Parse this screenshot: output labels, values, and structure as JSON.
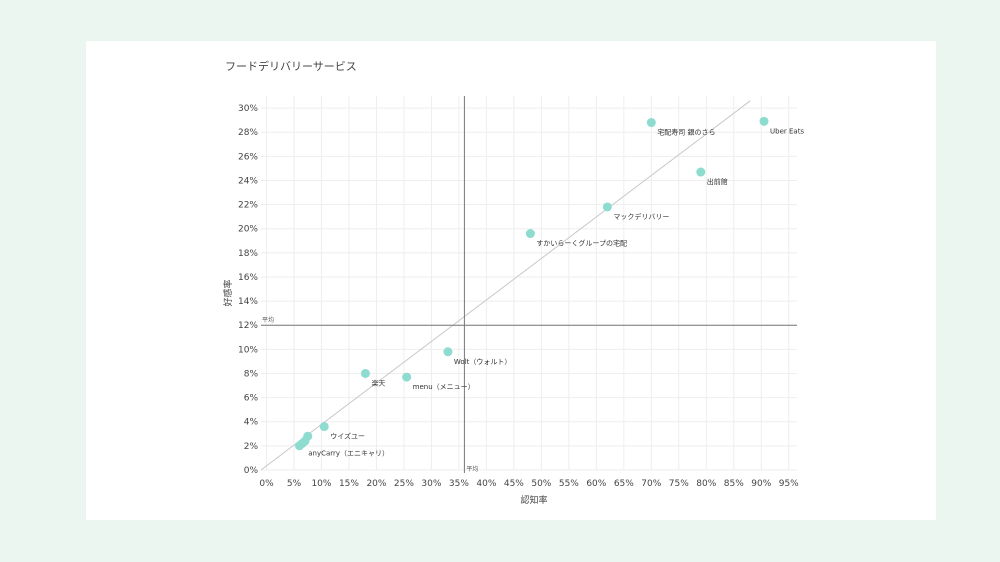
{
  "title": "フードデリバリーサービス",
  "chart_data": {
    "type": "scatter",
    "title": "フードデリバリーサービス",
    "xlabel": "認知率",
    "ylabel": "好感率",
    "xlim": [
      -0.01,
      0.965
    ],
    "ylim": [
      0,
      0.31
    ],
    "xticks": [
      0,
      0.05,
      0.1,
      0.15,
      0.2,
      0.25,
      0.3,
      0.35,
      0.4,
      0.45,
      0.5,
      0.55,
      0.6,
      0.65,
      0.7,
      0.75,
      0.8,
      0.85,
      0.9,
      0.95
    ],
    "xtick_labels": [
      "0%",
      "5%",
      "10%",
      "15%",
      "20%",
      "25%",
      "30%",
      "35%",
      "40%",
      "45%",
      "50%",
      "55%",
      "60%",
      "65%",
      "70%",
      "75%",
      "80%",
      "85%",
      "90%",
      "95%"
    ],
    "yticks": [
      0,
      0.02,
      0.04,
      0.06,
      0.08,
      0.1,
      0.12,
      0.14,
      0.16,
      0.18,
      0.2,
      0.22,
      0.24,
      0.26,
      0.28,
      0.3
    ],
    "ytick_labels": [
      "0%",
      "2%",
      "4%",
      "6%",
      "8%",
      "10%",
      "12%",
      "14%",
      "16%",
      "18%",
      "20%",
      "22%",
      "24%",
      "26%",
      "28%",
      "30%"
    ],
    "grid": true,
    "avg_x": 0.36,
    "avg_y": 0.12,
    "avg_x_label": "平均",
    "avg_y_label": "平均",
    "trend": {
      "x": [
        -0.01,
        0.88
      ],
      "y": [
        0,
        0.306
      ]
    },
    "marker_color": "#8edcd0",
    "points": [
      {
        "label": "Uber Eats",
        "x": 0.905,
        "y": 0.289
      },
      {
        "label": "宅配寿司 銀のさら",
        "x": 0.7,
        "y": 0.288
      },
      {
        "label": "出前館",
        "x": 0.79,
        "y": 0.247
      },
      {
        "label": "マックデリバリー",
        "x": 0.62,
        "y": 0.218
      },
      {
        "label": "すかいらーくグループの宅配",
        "x": 0.48,
        "y": 0.196
      },
      {
        "label": "Wolt（ウォルト）",
        "x": 0.33,
        "y": 0.098
      },
      {
        "label": "menu（メニュー）",
        "x": 0.255,
        "y": 0.077
      },
      {
        "label": "楽天",
        "x": 0.18,
        "y": 0.08
      },
      {
        "label": "ウイズユー",
        "x": 0.105,
        "y": 0.036
      },
      {
        "label": "anyCarry（エニキャリ）",
        "x": 0.065,
        "y": 0.022
      },
      {
        "label": "",
        "x": 0.07,
        "y": 0.024
      },
      {
        "label": "",
        "x": 0.075,
        "y": 0.028
      },
      {
        "label": "",
        "x": 0.06,
        "y": 0.02
      }
    ]
  }
}
